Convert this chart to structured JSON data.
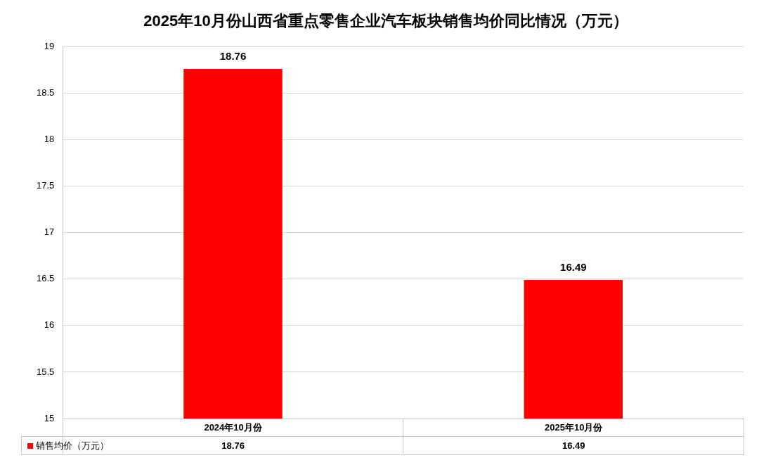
{
  "chart_data": {
    "type": "bar",
    "title": "2025年10月份山西省重点零售企业汽车板块销售均价同比情况（万元）",
    "categories": [
      "2024年10月份",
      "2025年10月份"
    ],
    "series": [
      {
        "name": "销售均价（万元）",
        "color": "#ff0000",
        "values": [
          18.76,
          16.49
        ]
      }
    ],
    "annotations": [
      "18.76",
      "16.49"
    ],
    "ylim": [
      15,
      19
    ],
    "yticks": [
      15,
      15.5,
      16,
      16.5,
      17,
      17.5,
      18,
      18.5,
      19
    ],
    "grid": "y",
    "legend": "bottom",
    "data_labels": true
  }
}
